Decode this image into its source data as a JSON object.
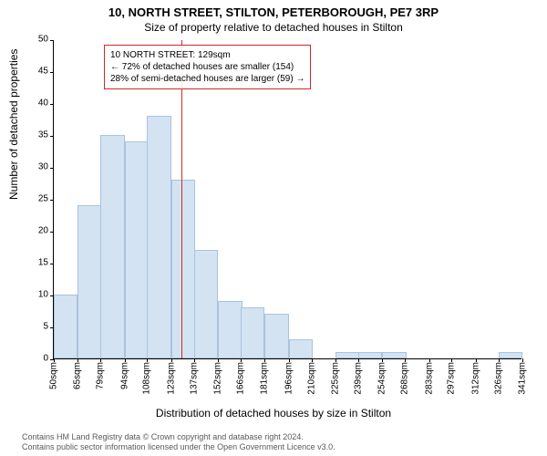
{
  "title": "10, NORTH STREET, STILTON, PETERBOROUGH, PE7 3RP",
  "subtitle": "Size of property relative to detached houses in Stilton",
  "ylabel": "Number of detached properties",
  "xlabel": "Distribution of detached houses by size in Stilton",
  "chart": {
    "type": "histogram",
    "background_color": "#ffffff",
    "bar_fill": "#d3e3f2",
    "bar_border": "#a9c3de",
    "axis_color": "#000000",
    "text_color": "#000000",
    "ylim": [
      0,
      50
    ],
    "yticks": [
      0,
      5,
      10,
      15,
      20,
      25,
      30,
      35,
      40,
      45,
      50
    ],
    "xticks": [
      50,
      65,
      79,
      94,
      108,
      123,
      137,
      152,
      166,
      181,
      196,
      210,
      225,
      239,
      254,
      268,
      283,
      297,
      312,
      326,
      341
    ],
    "xtick_unit": "sqm",
    "bars": [
      {
        "x": 50,
        "count": 10
      },
      {
        "x": 65,
        "count": 24
      },
      {
        "x": 79,
        "count": 35
      },
      {
        "x": 94,
        "count": 34
      },
      {
        "x": 108,
        "count": 38
      },
      {
        "x": 123,
        "count": 28
      },
      {
        "x": 137,
        "count": 17
      },
      {
        "x": 152,
        "count": 9
      },
      {
        "x": 166,
        "count": 8
      },
      {
        "x": 181,
        "count": 7
      },
      {
        "x": 196,
        "count": 3
      },
      {
        "x": 210,
        "count": 0
      },
      {
        "x": 225,
        "count": 1
      },
      {
        "x": 239,
        "count": 1
      },
      {
        "x": 254,
        "count": 1
      },
      {
        "x": 268,
        "count": 0
      },
      {
        "x": 283,
        "count": 0
      },
      {
        "x": 297,
        "count": 0
      },
      {
        "x": 312,
        "count": 0
      },
      {
        "x": 326,
        "count": 1
      }
    ],
    "reference_line": {
      "x": 129,
      "color": "#d62728",
      "width": 1.5
    },
    "callout": {
      "line1": "10 NORTH STREET: 129sqm",
      "line2": "← 72% of detached houses are smaller (154)",
      "line3": "28% of semi-detached houses are larger (59) →",
      "border_color": "#d62728",
      "position_x": 55,
      "position_y": 5,
      "fontsize": 10
    }
  },
  "footer": {
    "line1": "Contains HM Land Registry data © Crown copyright and database right 2024.",
    "line2": "Contains public sector information licensed under the Open Government Licence v3.0.",
    "color": "#5a5a5a",
    "fontsize": 9
  }
}
